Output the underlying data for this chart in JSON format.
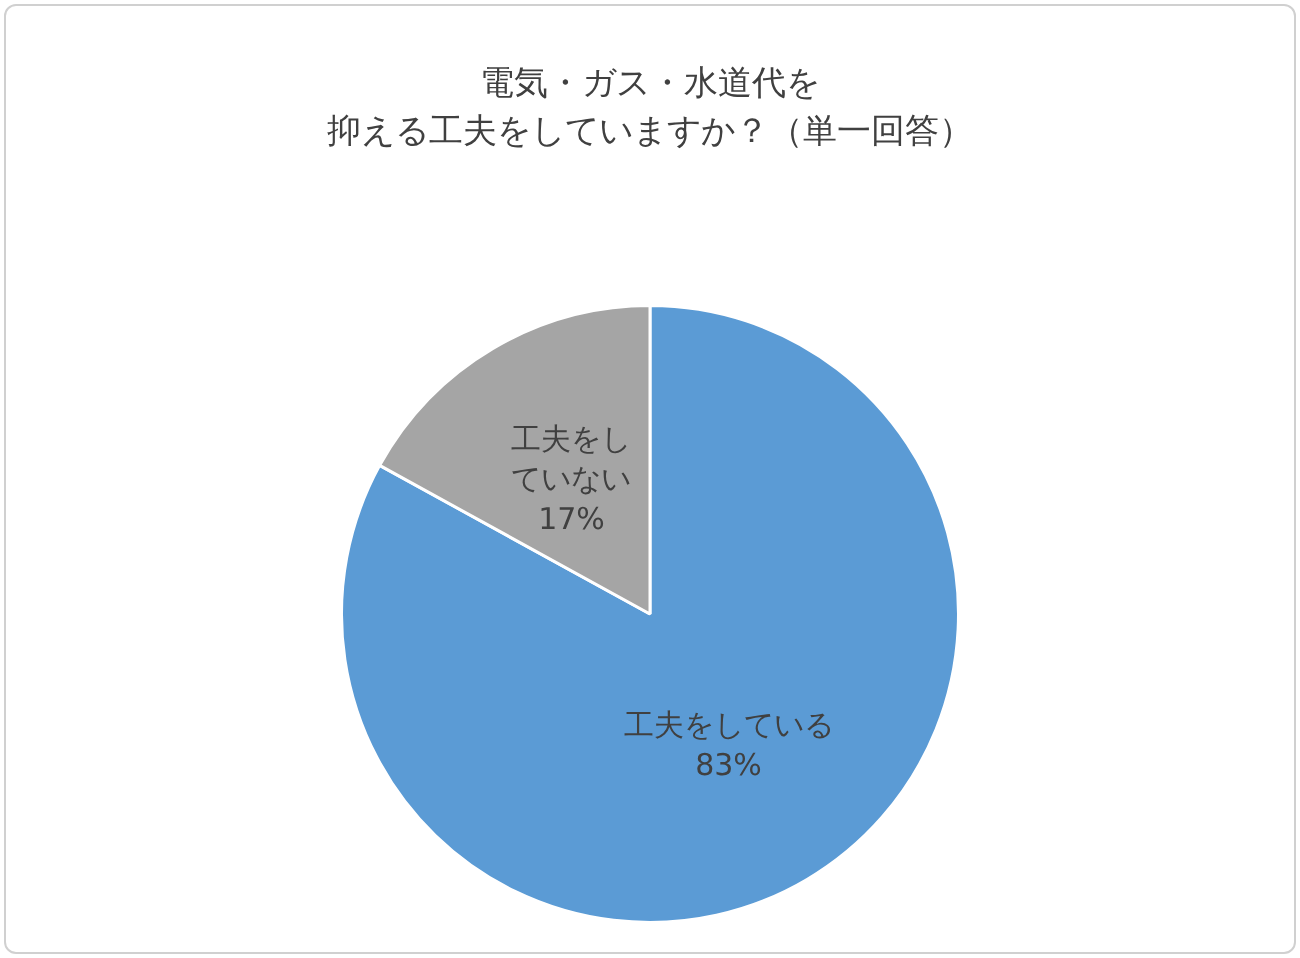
{
  "chart_data": {
    "type": "pie",
    "title": "電気・ガス・水道代を",
    "subtitle": "抑える工夫をしていますか？（単一回答）",
    "categories": [
      "工夫をしている",
      "工夫をしていない"
    ],
    "values": [
      83,
      17
    ],
    "value_labels": [
      "83%",
      "17%"
    ],
    "colors": [
      "#5b9bd5",
      "#a5a5a5"
    ],
    "legend": false
  }
}
